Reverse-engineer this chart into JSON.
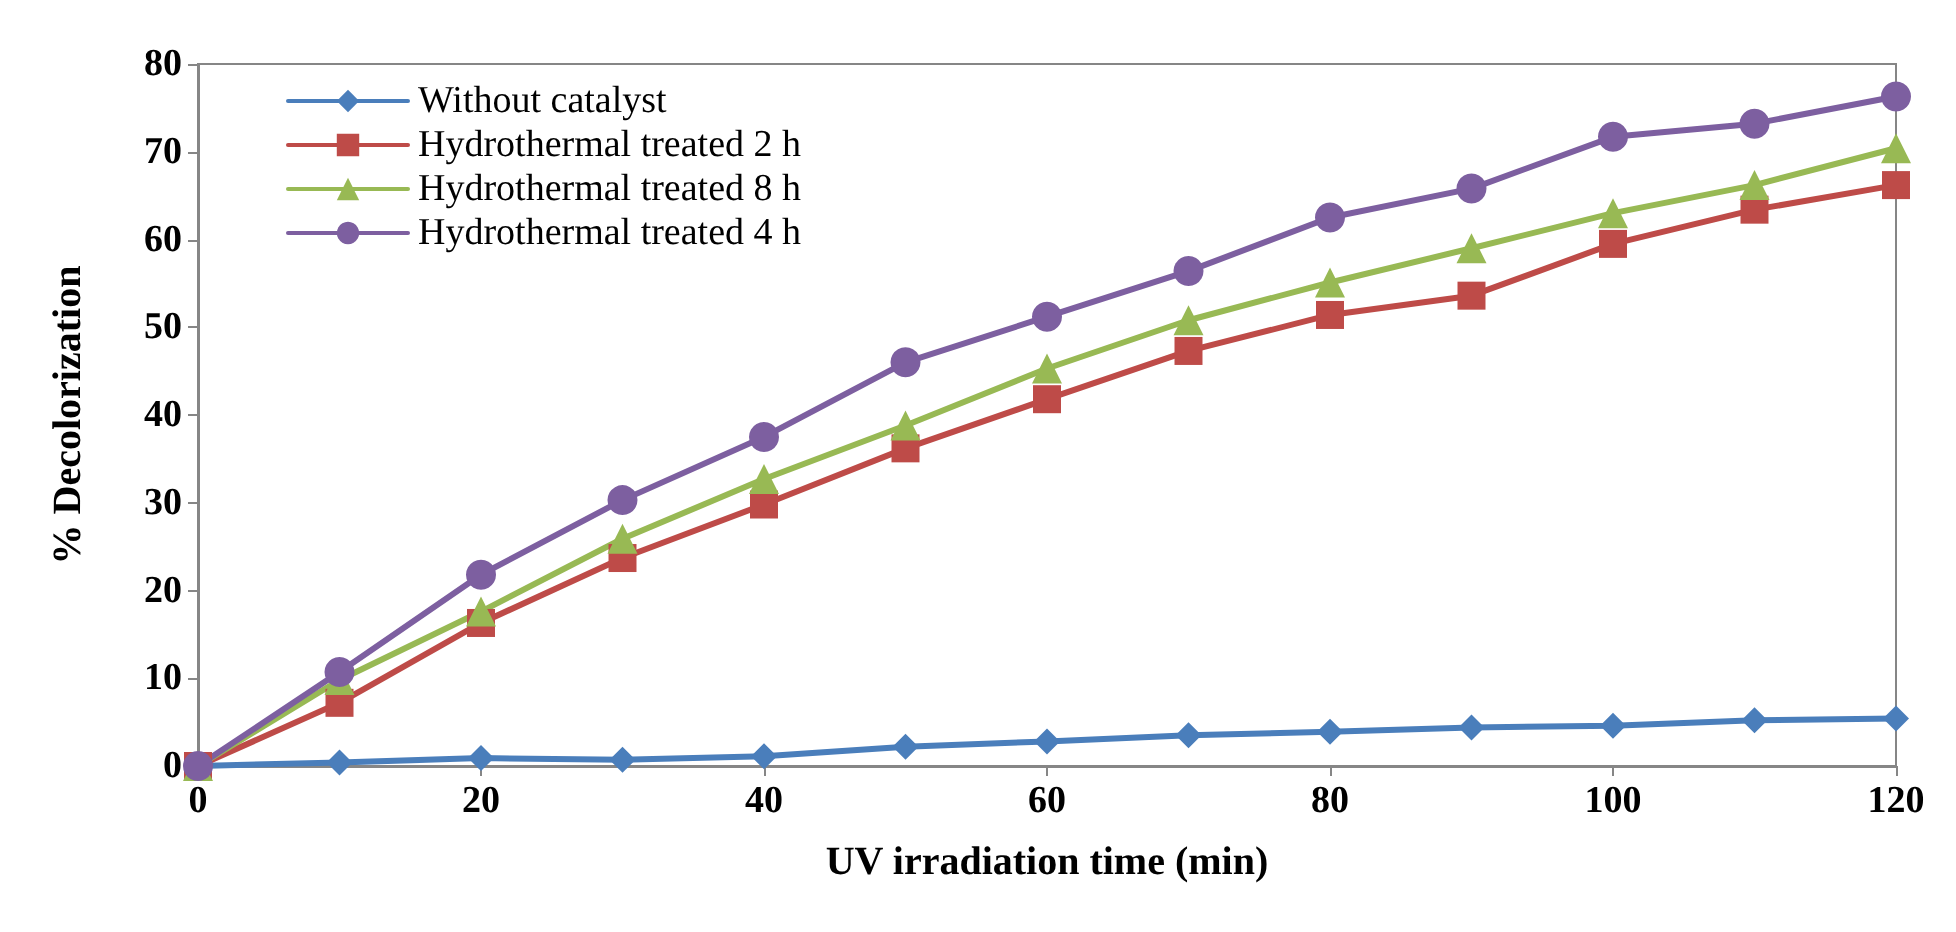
{
  "chart_data": {
    "type": "line",
    "xlabel": "UV irradiation time (min)",
    "ylabel": "% Decolorization",
    "x": [
      0,
      10,
      20,
      30,
      40,
      50,
      60,
      70,
      80,
      90,
      100,
      110,
      120
    ],
    "series": [
      {
        "name": "Without catalyst",
        "color": "#4a7ebb",
        "marker": "diamond",
        "values": [
          0,
          0.4,
          0.9,
          0.7,
          1.1,
          2.2,
          2.8,
          3.5,
          3.9,
          4.4,
          4.6,
          5.2,
          5.4
        ]
      },
      {
        "name": "Hydrothermal treated 2 h",
        "color": "#be4b48",
        "marker": "square",
        "values": [
          0,
          7.2,
          16.3,
          23.7,
          29.8,
          36.2,
          41.8,
          47.3,
          51.4,
          53.6,
          59.5,
          63.4,
          66.2
        ]
      },
      {
        "name": "Hydrothermal treated 8 h",
        "color": "#98b954",
        "marker": "triangle",
        "values": [
          0,
          9.8,
          17.6,
          25.9,
          32.7,
          38.8,
          45.3,
          50.8,
          55.1,
          59.0,
          63.0,
          66.2,
          70.4
        ]
      },
      {
        "name": "Hydrothermal treated 4 h",
        "color": "#7d5fa0",
        "marker": "circle",
        "values": [
          0,
          10.7,
          21.8,
          30.3,
          37.5,
          46.0,
          51.2,
          56.4,
          62.5,
          65.8,
          71.7,
          73.2,
          76.3
        ]
      }
    ],
    "xlim": [
      0,
      120
    ],
    "xticks": [
      0,
      20,
      40,
      60,
      80,
      100,
      120
    ],
    "ylim": [
      0,
      80
    ],
    "yticks": [
      0,
      10,
      20,
      30,
      40,
      50,
      60,
      70,
      80
    ],
    "grid": false,
    "legend": "top left",
    "line_style": "solid"
  }
}
